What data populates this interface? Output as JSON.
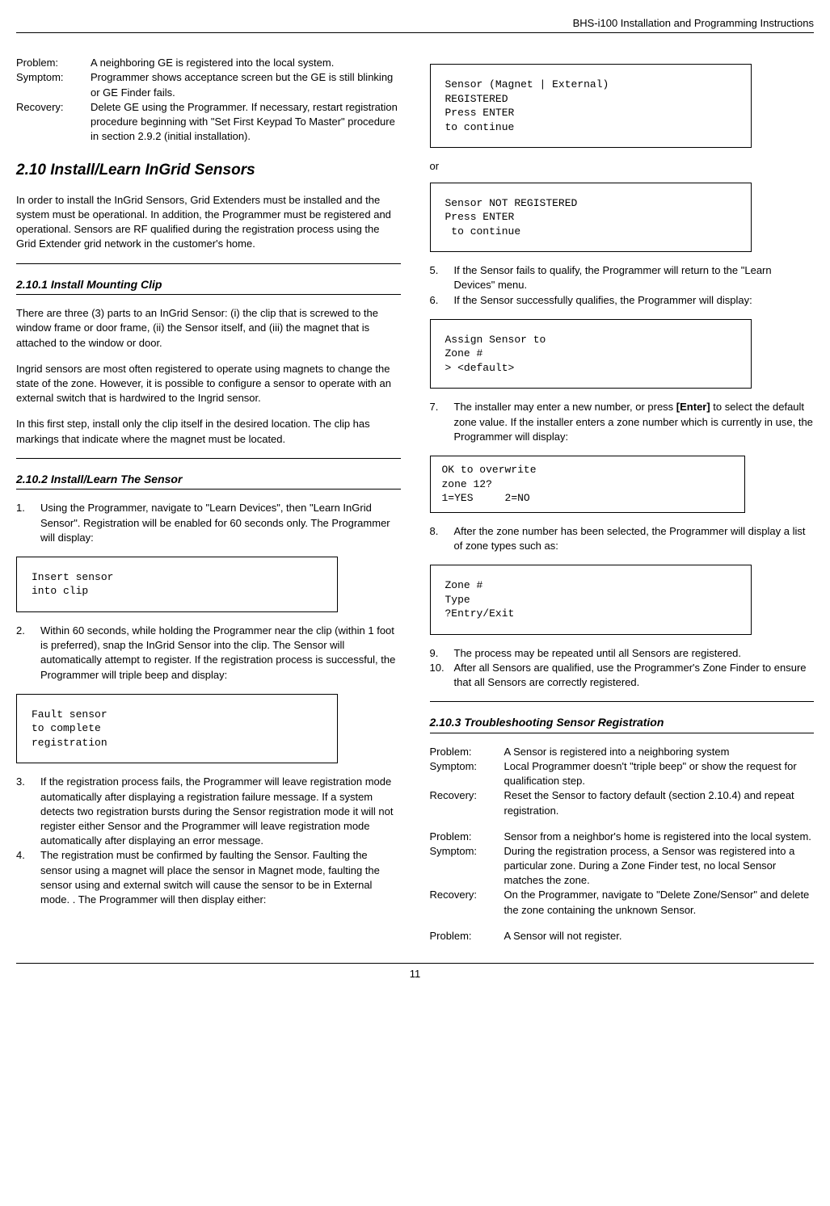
{
  "header": {
    "title": "BHS-i100 Installation and Programming Instructions"
  },
  "left": {
    "problem1": {
      "problem_label": "Problem:",
      "problem_value": "A neighboring GE is registered into the local system.",
      "symptom_label": "Symptom:",
      "symptom_value": "Programmer shows acceptance screen but the GE is still blinking or GE Finder fails.",
      "recovery_label": "Recovery:",
      "recovery_value": "Delete GE using the Programmer. If necessary, restart registration procedure beginning with \"Set First Keypad To Master\" procedure in section 2.9.2 (initial installation)."
    },
    "section_2_10": {
      "heading": "2.10  Install/Learn InGrid Sensors",
      "intro": "In order to install the InGrid Sensors, Grid Extenders must be installed and the system must be operational. In addition, the Programmer must be registered and operational. Sensors are RF qualified during the registration process using the Grid Extender grid network in the customer's home."
    },
    "section_2_10_1": {
      "heading": "2.10.1 Install Mounting Clip",
      "p1": "There are three (3) parts to an InGrid Sensor: (i) the clip that is screwed to the window frame or door frame, (ii) the Sensor itself, and (iii) the magnet that is attached to the window or door.",
      "p2": "Ingrid sensors are most often registered to operate using magnets to change the state of the zone. However, it is possible to configure a sensor to operate with an external switch that is hardwired to the Ingrid sensor.",
      "p3": "In this first step, install only the clip itself in the desired location. The clip has markings that indicate where the magnet must be located."
    },
    "section_2_10_2": {
      "heading": "2.10.2 Install/Learn The Sensor",
      "step1_num": "1.",
      "step1": "Using the Programmer, navigate to \"Learn Devices\", then \"Learn InGrid Sensor\". Registration will be enabled for 60 seconds only. The Programmer will display:",
      "code1": "Insert sensor\ninto clip",
      "step2_num": "2.",
      "step2": "Within 60 seconds, while holding the Programmer near the clip (within 1 foot is preferred), snap the InGrid Sensor into the clip. The Sensor will automatically attempt to register. If the registration process is successful, the Programmer will triple beep and display:",
      "code2": "Fault sensor\nto complete\nregistration",
      "step3_num": "3.",
      "step3": "If the registration process fails, the Programmer will leave registration mode automatically after displaying a registration failure message. If a system detects two registration bursts during the Sensor registration mode it will not register either Sensor and the Programmer will leave registration mode automatically after displaying an error message.",
      "step4_num": "4.",
      "step4": "The registration must be confirmed by faulting the Sensor. Faulting the sensor using a magnet will place the sensor in Magnet mode, faulting the sensor using and external switch will cause the sensor to be in External mode. . The Programmer will then display either:"
    }
  },
  "right": {
    "code_registered": "Sensor (Magnet | External)\nREGISTERED\nPress ENTER\nto continue",
    "or_text": "or",
    "code_not_registered": "Sensor NOT REGISTERED\nPress ENTER\n to continue",
    "step5_num": "5.",
    "step5": "If the Sensor fails to qualify, the Programmer will return to the \"Learn Devices\" menu.",
    "step6_num": "6.",
    "step6": "If the Sensor successfully qualifies, the Programmer will display:",
    "code_assign": "Assign Sensor to\nZone #\n> <default>",
    "step7_num": "7.",
    "step7_a": "The installer may enter a new number, or press ",
    "step7_bold": "[Enter]",
    "step7_b": " to select the default zone value. If the installer enters a zone number which is currently in use, the Programmer will display:",
    "code_overwrite": "OK to overwrite\nzone 12?\n1=YES     2=NO",
    "step8_num": "8.",
    "step8": "After the zone number has been selected, the Programmer will display a list of zone types such as:",
    "code_zone_type": "Zone #\nType\n?Entry/Exit",
    "step9_num": "9.",
    "step9": "The process may be repeated until all Sensors are registered.",
    "step10_num": "10.",
    "step10": "After all Sensors are qualified, use the Programmer's Zone Finder to ensure that all Sensors are correctly registered.",
    "section_2_10_3": {
      "heading": "2.10.3 Troubleshooting Sensor Registration",
      "p1": {
        "problem_label": "Problem:",
        "problem_value": "A Sensor is registered into a neighboring system",
        "symptom_label": "Symptom:",
        "symptom_value": "Local Programmer doesn't \"triple beep\" or show the request for qualification step.",
        "recovery_label": "Recovery:",
        "recovery_value": "Reset the Sensor to factory default (section 2.10.4) and repeat registration."
      },
      "p2": {
        "problem_label": "Problem:",
        "problem_value": "Sensor from a neighbor's home is registered into the local system.",
        "symptom_label": "Symptom:",
        "symptom_value": "During the registration process, a Sensor was registered into a particular zone. During a Zone Finder test, no local Sensor matches the zone.",
        "recovery_label": "Recovery:",
        "recovery_value": "On the Programmer, navigate to \"Delete Zone/Sensor\" and delete the zone containing the unknown Sensor."
      },
      "p3": {
        "problem_label": "Problem:",
        "problem_value": "A Sensor will not register."
      }
    }
  },
  "footer": {
    "page": "11"
  }
}
